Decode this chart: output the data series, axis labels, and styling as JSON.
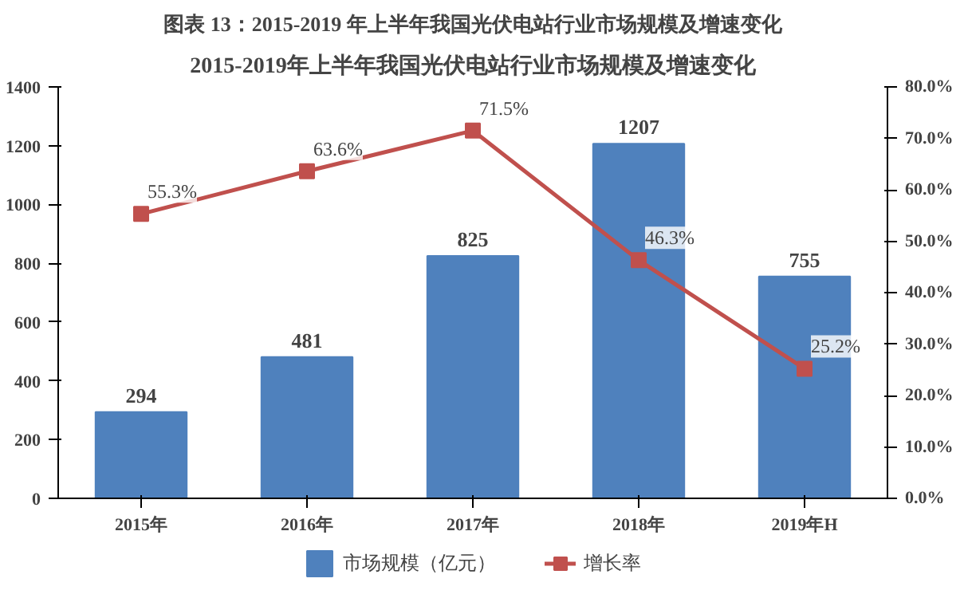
{
  "chart_data": {
    "type": "bar",
    "title": "2015-2019年上半年我国光伏电站行业市场规模及增速变化",
    "annotations": [
      "图表 13：2015-2019 年上半年我国光伏电站行业市场规模及增速变化"
    ],
    "categories": [
      "2015年",
      "2016年",
      "2017年",
      "2018年",
      "2019年H"
    ],
    "series": [
      {
        "name": "市场规模（亿元）",
        "color": "#4f81bd",
        "values": [
          294,
          481,
          825,
          1207,
          755
        ],
        "data_labels": true
      },
      {
        "name": "增长率",
        "type": "line",
        "axis": "y2",
        "color": "#c0504d",
        "marker": "square",
        "values": [
          55.3,
          63.6,
          71.5,
          46.3,
          25.2
        ],
        "value_labels": [
          "55.3%",
          "63.6%",
          "71.5%",
          "46.3%",
          "25.2%"
        ]
      }
    ],
    "ylim": [
      0,
      1400
    ],
    "yticks": [
      0,
      200,
      400,
      600,
      800,
      1000,
      1200,
      1400
    ],
    "y2lim": [
      0,
      80
    ],
    "y2ticks": [
      {
        "value": 0,
        "label": "0.0%"
      },
      {
        "value": 10,
        "label": "10.0%"
      },
      {
        "value": 20,
        "label": "20.0%"
      },
      {
        "value": 30,
        "label": "30.0%"
      },
      {
        "value": 40,
        "label": "40.0%"
      },
      {
        "value": 50,
        "label": "50.0%"
      },
      {
        "value": 60,
        "label": "60.0%"
      },
      {
        "value": 70,
        "label": "70.0%"
      },
      {
        "value": 80,
        "label": "80.0%"
      }
    ],
    "legend": "bottom"
  }
}
